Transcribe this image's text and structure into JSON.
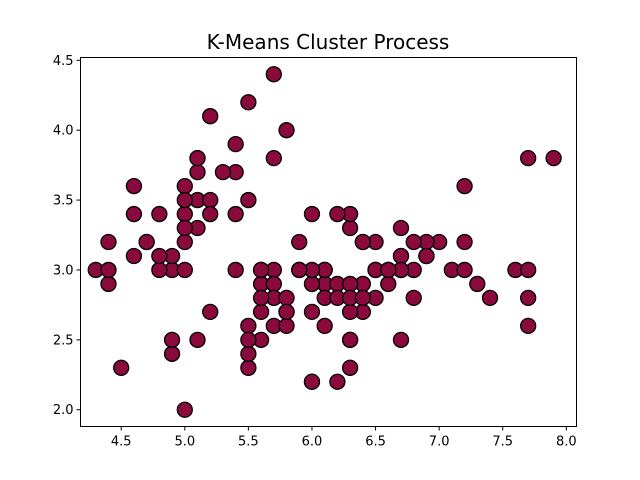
{
  "chart_data": {
    "type": "scatter",
    "title": "K-Means Cluster Process",
    "xlabel": "",
    "ylabel": "",
    "xlim": [
      4.18,
      8.08
    ],
    "ylim": [
      1.88,
      4.52
    ],
    "xticks": [
      4.5,
      5.0,
      5.5,
      6.0,
      6.5,
      7.0,
      7.5,
      8.0
    ],
    "xtick_labels": [
      "4.5",
      "5.0",
      "5.5",
      "6.0",
      "6.5",
      "7.0",
      "7.5",
      "8.0"
    ],
    "yticks": [
      2.0,
      2.5,
      3.0,
      3.5,
      4.0,
      4.5
    ],
    "ytick_labels": [
      "2.0",
      "2.5",
      "3.0",
      "3.5",
      "4.0",
      "4.5"
    ],
    "grid": false,
    "marker_color": "#8b0a3e",
    "marker_edge_color": "#000000",
    "points": [
      [
        5.1,
        3.5
      ],
      [
        4.9,
        3.0
      ],
      [
        4.7,
        3.2
      ],
      [
        4.6,
        3.1
      ],
      [
        5.0,
        3.6
      ],
      [
        5.4,
        3.9
      ],
      [
        4.6,
        3.4
      ],
      [
        5.0,
        3.4
      ],
      [
        4.4,
        2.9
      ],
      [
        4.9,
        3.1
      ],
      [
        5.4,
        3.7
      ],
      [
        4.8,
        3.4
      ],
      [
        4.8,
        3.0
      ],
      [
        4.3,
        3.0
      ],
      [
        5.8,
        4.0
      ],
      [
        5.7,
        4.4
      ],
      [
        5.1,
        3.8
      ],
      [
        5.7,
        3.8
      ],
      [
        5.4,
        3.4
      ],
      [
        5.1,
        3.7
      ],
      [
        4.6,
        3.6
      ],
      [
        5.1,
        3.3
      ],
      [
        5.0,
        3.0
      ],
      [
        5.2,
        3.5
      ],
      [
        5.2,
        3.4
      ],
      [
        4.7,
        3.2
      ],
      [
        4.8,
        3.1
      ],
      [
        5.2,
        4.1
      ],
      [
        5.5,
        4.2
      ],
      [
        5.0,
        3.2
      ],
      [
        5.5,
        3.5
      ],
      [
        4.4,
        3.0
      ],
      [
        4.5,
        2.3
      ],
      [
        4.4,
        3.2
      ],
      [
        5.0,
        3.5
      ],
      [
        5.1,
        3.8
      ],
      [
        5.3,
        3.7
      ],
      [
        5.0,
        3.3
      ],
      [
        7.0,
        3.2
      ],
      [
        6.4,
        3.2
      ],
      [
        6.9,
        3.1
      ],
      [
        5.5,
        2.3
      ],
      [
        6.5,
        2.8
      ],
      [
        5.7,
        2.8
      ],
      [
        6.3,
        3.3
      ],
      [
        4.9,
        2.4
      ],
      [
        6.6,
        2.9
      ],
      [
        5.2,
        2.7
      ],
      [
        5.0,
        2.0
      ],
      [
        5.9,
        3.0
      ],
      [
        6.0,
        2.2
      ],
      [
        6.1,
        2.9
      ],
      [
        5.6,
        2.9
      ],
      [
        6.7,
        3.1
      ],
      [
        5.6,
        3.0
      ],
      [
        5.8,
        2.7
      ],
      [
        6.2,
        2.2
      ],
      [
        5.6,
        2.5
      ],
      [
        5.9,
        3.2
      ],
      [
        6.1,
        2.8
      ],
      [
        6.3,
        2.5
      ],
      [
        6.4,
        2.9
      ],
      [
        6.6,
        3.0
      ],
      [
        6.8,
        2.8
      ],
      [
        6.7,
        3.0
      ],
      [
        6.0,
        2.9
      ],
      [
        5.7,
        2.6
      ],
      [
        5.5,
        2.4
      ],
      [
        5.8,
        2.7
      ],
      [
        6.0,
        2.7
      ],
      [
        5.4,
        3.0
      ],
      [
        6.0,
        3.4
      ],
      [
        6.7,
        3.1
      ],
      [
        6.3,
        2.3
      ],
      [
        5.5,
        2.6
      ],
      [
        6.1,
        3.0
      ],
      [
        5.8,
        2.6
      ],
      [
        5.6,
        2.7
      ],
      [
        5.7,
        3.0
      ],
      [
        5.7,
        2.9
      ],
      [
        6.2,
        2.9
      ],
      [
        5.1,
        2.5
      ],
      [
        5.7,
        2.8
      ],
      [
        6.3,
        2.9
      ],
      [
        7.1,
        3.0
      ],
      [
        7.6,
        3.0
      ],
      [
        7.3,
        2.9
      ],
      [
        6.7,
        2.5
      ],
      [
        7.2,
        3.6
      ],
      [
        6.5,
        3.2
      ],
      [
        6.4,
        2.7
      ],
      [
        6.8,
        3.0
      ],
      [
        5.8,
        2.8
      ],
      [
        6.4,
        3.2
      ],
      [
        6.5,
        3.0
      ],
      [
        7.7,
        3.8
      ],
      [
        7.7,
        2.6
      ],
      [
        6.0,
        2.2
      ],
      [
        6.9,
        3.2
      ],
      [
        5.6,
        2.8
      ],
      [
        7.7,
        2.8
      ],
      [
        6.3,
        2.7
      ],
      [
        6.7,
        3.3
      ],
      [
        7.2,
        3.2
      ],
      [
        6.2,
        2.8
      ],
      [
        6.1,
        3.0
      ],
      [
        7.2,
        3.0
      ],
      [
        7.4,
        2.8
      ],
      [
        7.9,
        3.8
      ],
      [
        6.3,
        2.8
      ],
      [
        6.1,
        2.6
      ],
      [
        7.7,
        3.0
      ],
      [
        6.3,
        3.4
      ],
      [
        6.0,
        3.0
      ],
      [
        6.9,
        3.1
      ],
      [
        5.8,
        2.7
      ],
      [
        6.8,
        3.2
      ],
      [
        6.2,
        3.4
      ],
      [
        5.9,
        3.0
      ],
      [
        6.5,
        3.0
      ],
      [
        6.7,
        3.0
      ],
      [
        6.6,
        3.0
      ],
      [
        6.9,
        3.1
      ],
      [
        6.4,
        2.8
      ],
      [
        6.3,
        2.5
      ],
      [
        4.9,
        2.5
      ],
      [
        5.6,
        3.0
      ],
      [
        5.5,
        2.5
      ]
    ]
  }
}
